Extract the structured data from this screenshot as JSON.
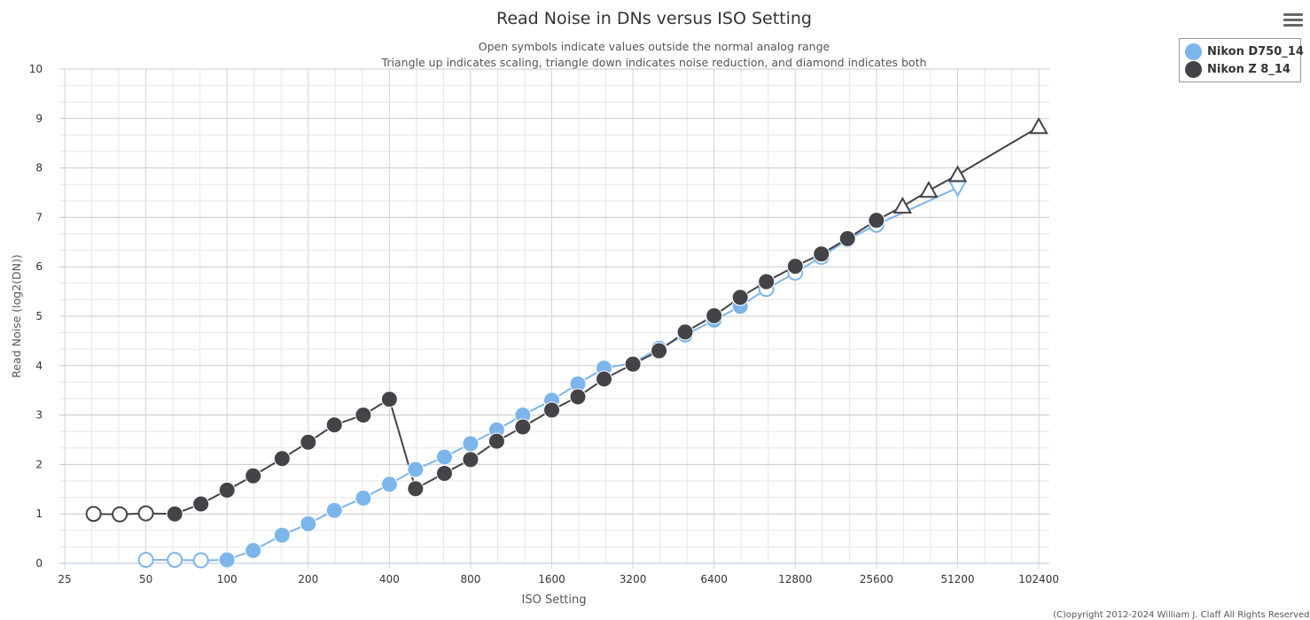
{
  "chart_data": {
    "type": "line",
    "title": "Read Noise in DNs versus ISO Setting",
    "subtitle_lines": [
      "Open symbols indicate values outside the normal analog range",
      "Triangle up indicates scaling, triangle down indicates noise reduction, and diamond indicates both"
    ],
    "xlabel": "ISO Setting",
    "ylabel": "Read Noise (log2(DN))",
    "xscale": "log2",
    "xlim": [
      25,
      102400
    ],
    "ylim": [
      0,
      10
    ],
    "xticks": [
      25,
      50,
      100,
      200,
      400,
      800,
      1600,
      3200,
      6400,
      12800,
      25600,
      51200,
      102400
    ],
    "xtick_labels": [
      "25",
      "50",
      "100",
      "200",
      "400",
      "800",
      "1600",
      "3200",
      "6400",
      "12800",
      "25600",
      "51200",
      "102400"
    ],
    "yticks": [
      0,
      1,
      2,
      3,
      4,
      5,
      6,
      7,
      8,
      9,
      10
    ],
    "ytick_labels": [
      "0",
      "1",
      "2",
      "3",
      "4",
      "5",
      "6",
      "7",
      "8",
      "9",
      "10"
    ],
    "series": [
      {
        "name": "Nikon D750_14",
        "color": "#7cb5ec",
        "points": [
          {
            "iso": 50,
            "rn": 0.07,
            "marker": "open-circle"
          },
          {
            "iso": 64,
            "rn": 0.07,
            "marker": "open-circle"
          },
          {
            "iso": 80,
            "rn": 0.06,
            "marker": "open-circle"
          },
          {
            "iso": 100,
            "rn": 0.07,
            "marker": "circle"
          },
          {
            "iso": 125,
            "rn": 0.26,
            "marker": "circle"
          },
          {
            "iso": 160,
            "rn": 0.57,
            "marker": "circle"
          },
          {
            "iso": 200,
            "rn": 0.8,
            "marker": "circle"
          },
          {
            "iso": 250,
            "rn": 1.07,
            "marker": "circle"
          },
          {
            "iso": 320,
            "rn": 1.32,
            "marker": "circle"
          },
          {
            "iso": 400,
            "rn": 1.6,
            "marker": "circle"
          },
          {
            "iso": 500,
            "rn": 1.9,
            "marker": "circle"
          },
          {
            "iso": 640,
            "rn": 2.15,
            "marker": "circle"
          },
          {
            "iso": 800,
            "rn": 2.42,
            "marker": "circle"
          },
          {
            "iso": 1000,
            "rn": 2.7,
            "marker": "circle"
          },
          {
            "iso": 1250,
            "rn": 3.0,
            "marker": "circle"
          },
          {
            "iso": 1600,
            "rn": 3.3,
            "marker": "circle"
          },
          {
            "iso": 2000,
            "rn": 3.63,
            "marker": "circle"
          },
          {
            "iso": 2500,
            "rn": 3.95,
            "marker": "circle"
          },
          {
            "iso": 3200,
            "rn": 4.05,
            "marker": "circle"
          },
          {
            "iso": 4000,
            "rn": 4.35,
            "marker": "circle"
          },
          {
            "iso": 5000,
            "rn": 4.62,
            "marker": "circle"
          },
          {
            "iso": 6400,
            "rn": 4.92,
            "marker": "circle"
          },
          {
            "iso": 8000,
            "rn": 5.2,
            "marker": "circle"
          },
          {
            "iso": 10000,
            "rn": 5.55,
            "marker": "open-circle"
          },
          {
            "iso": 12800,
            "rn": 5.88,
            "marker": "open-circle"
          },
          {
            "iso": 16000,
            "rn": 6.2,
            "marker": "open-circle"
          },
          {
            "iso": 20000,
            "rn": 6.55,
            "marker": "open-circle"
          },
          {
            "iso": 25600,
            "rn": 6.85,
            "marker": "open-circle"
          },
          {
            "iso": 51200,
            "rn": 7.6,
            "marker": "triangle-down"
          }
        ]
      },
      {
        "name": "Nikon Z 8_14",
        "color": "#434348",
        "points": [
          {
            "iso": 32,
            "rn": 1.0,
            "marker": "open-circle"
          },
          {
            "iso": 40,
            "rn": 0.99,
            "marker": "open-circle"
          },
          {
            "iso": 50,
            "rn": 1.01,
            "marker": "open-circle"
          },
          {
            "iso": 64,
            "rn": 1.0,
            "marker": "circle"
          },
          {
            "iso": 80,
            "rn": 1.2,
            "marker": "circle"
          },
          {
            "iso": 100,
            "rn": 1.48,
            "marker": "circle"
          },
          {
            "iso": 125,
            "rn": 1.77,
            "marker": "circle"
          },
          {
            "iso": 160,
            "rn": 2.12,
            "marker": "circle"
          },
          {
            "iso": 200,
            "rn": 2.45,
            "marker": "circle"
          },
          {
            "iso": 250,
            "rn": 2.8,
            "marker": "circle"
          },
          {
            "iso": 320,
            "rn": 3.0,
            "marker": "circle"
          },
          {
            "iso": 400,
            "rn": 3.32,
            "marker": "circle"
          },
          {
            "iso": 500,
            "rn": 1.51,
            "marker": "circle"
          },
          {
            "iso": 640,
            "rn": 1.82,
            "marker": "circle"
          },
          {
            "iso": 800,
            "rn": 2.1,
            "marker": "circle"
          },
          {
            "iso": 1000,
            "rn": 2.47,
            "marker": "circle"
          },
          {
            "iso": 1250,
            "rn": 2.76,
            "marker": "circle"
          },
          {
            "iso": 1600,
            "rn": 3.1,
            "marker": "circle"
          },
          {
            "iso": 2000,
            "rn": 3.37,
            "marker": "circle"
          },
          {
            "iso": 2500,
            "rn": 3.73,
            "marker": "circle"
          },
          {
            "iso": 3200,
            "rn": 4.03,
            "marker": "circle"
          },
          {
            "iso": 4000,
            "rn": 4.3,
            "marker": "circle"
          },
          {
            "iso": 5000,
            "rn": 4.68,
            "marker": "circle"
          },
          {
            "iso": 6400,
            "rn": 5.01,
            "marker": "circle"
          },
          {
            "iso": 8000,
            "rn": 5.38,
            "marker": "circle"
          },
          {
            "iso": 10000,
            "rn": 5.7,
            "marker": "circle"
          },
          {
            "iso": 12800,
            "rn": 6.01,
            "marker": "circle"
          },
          {
            "iso": 16000,
            "rn": 6.26,
            "marker": "circle"
          },
          {
            "iso": 20000,
            "rn": 6.57,
            "marker": "circle"
          },
          {
            "iso": 25600,
            "rn": 6.94,
            "marker": "circle"
          },
          {
            "iso": 32000,
            "rn": 7.22,
            "marker": "triangle-up"
          },
          {
            "iso": 40000,
            "rn": 7.54,
            "marker": "triangle-up"
          },
          {
            "iso": 51200,
            "rn": 7.86,
            "marker": "triangle-up"
          },
          {
            "iso": 102400,
            "rn": 8.83,
            "marker": "triangle-up"
          }
        ]
      }
    ]
  },
  "legend": {
    "items": [
      {
        "label": "Nikon D750_14",
        "color": "#7cb5ec"
      },
      {
        "label": "Nikon Z 8_14",
        "color": "#434348"
      }
    ]
  },
  "menu": {
    "icon": "hamburger-menu-icon"
  },
  "copyright": "(C)opyright 2012-2024 William J. Claff All Rights Reserved"
}
